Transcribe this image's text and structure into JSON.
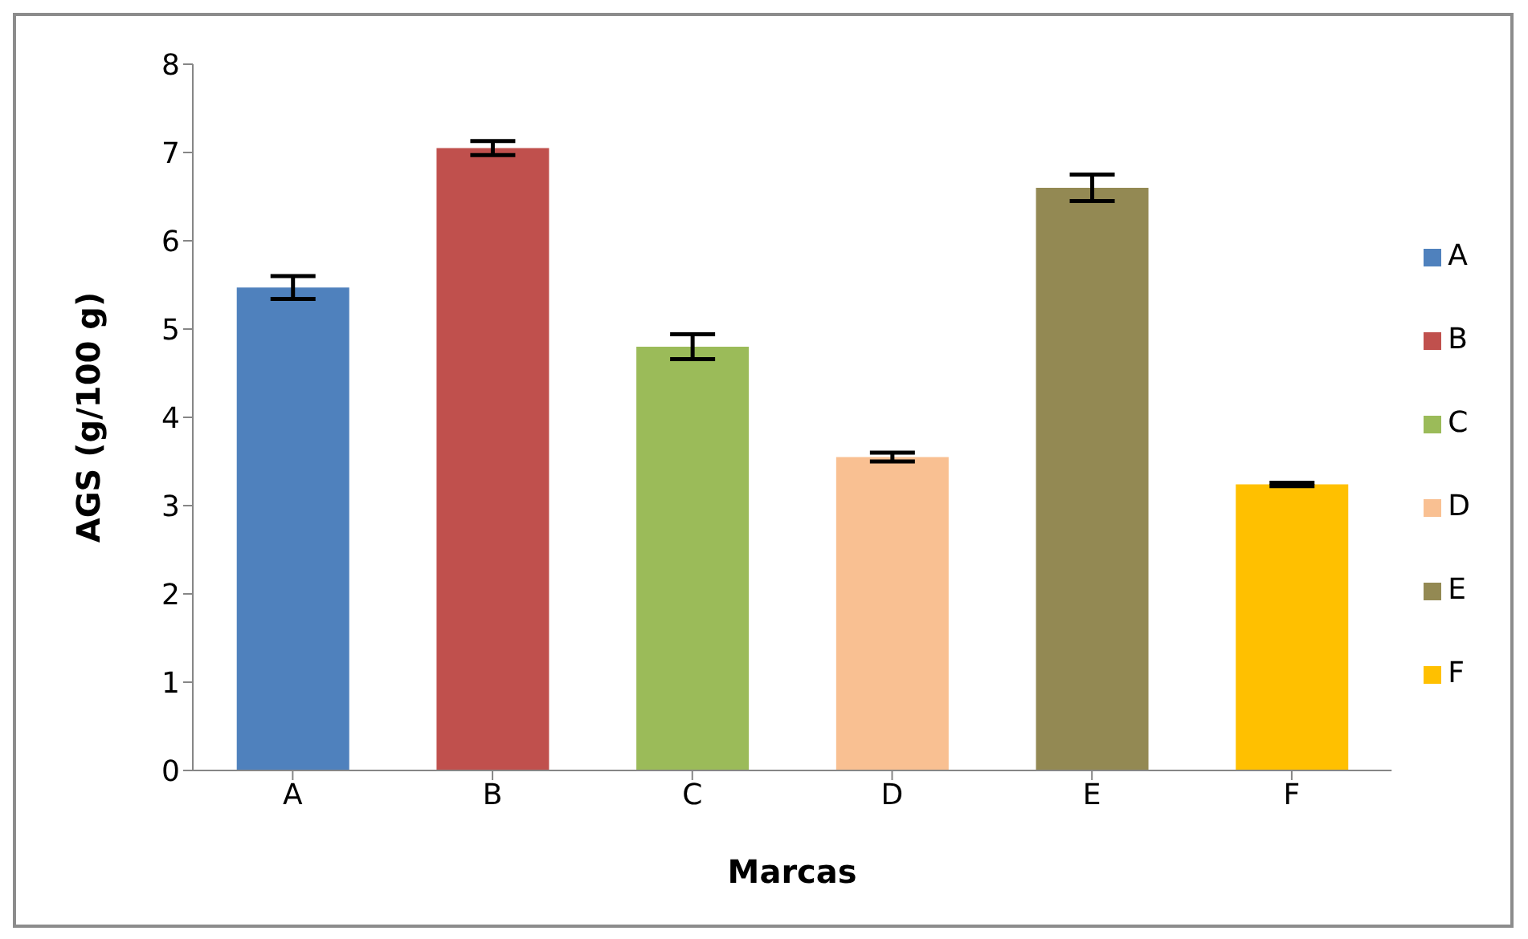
{
  "chart_data": {
    "type": "bar",
    "xlabel": "Marcas",
    "ylabel": "AGS (g/100 g)",
    "categories": [
      "A",
      "B",
      "C",
      "D",
      "E",
      "F"
    ],
    "series": [
      {
        "name": "A",
        "color": "#4f81bd",
        "values": [
          5.47,
          null,
          null,
          null,
          null,
          null
        ],
        "errors": [
          0.13,
          null,
          null,
          null,
          null,
          null
        ]
      },
      {
        "name": "B",
        "color": "#c0504d",
        "values": [
          null,
          7.05,
          null,
          null,
          null,
          null
        ],
        "errors": [
          null,
          0.08,
          null,
          null,
          null,
          null
        ]
      },
      {
        "name": "C",
        "color": "#9bbb59",
        "values": [
          null,
          null,
          4.8,
          null,
          null,
          null
        ],
        "errors": [
          null,
          null,
          0.14,
          null,
          null,
          null
        ]
      },
      {
        "name": "D",
        "color": "#f9c092",
        "values": [
          null,
          null,
          null,
          3.55,
          null,
          null
        ],
        "errors": [
          null,
          null,
          null,
          0.05,
          null,
          null
        ]
      },
      {
        "name": "E",
        "color": "#938953",
        "values": [
          null,
          null,
          null,
          null,
          6.6,
          null
        ],
        "errors": [
          null,
          null,
          null,
          null,
          0.15,
          null
        ]
      },
      {
        "name": "F",
        "color": "#ffc000",
        "values": [
          null,
          null,
          null,
          null,
          null,
          3.24
        ],
        "errors": [
          null,
          null,
          null,
          null,
          null,
          0.02
        ]
      }
    ],
    "stacked": true,
    "ylim": [
      0,
      8
    ],
    "yticks": [
      0,
      1,
      2,
      3,
      4,
      5,
      6,
      7,
      8
    ],
    "legend": "right"
  }
}
